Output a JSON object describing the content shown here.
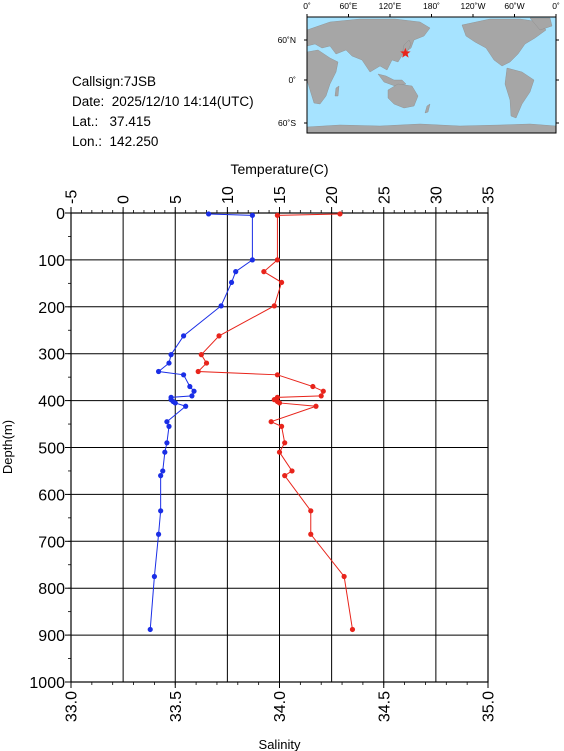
{
  "station": {
    "callsign_label": "Callsign:",
    "callsign": "7JSB",
    "date_label": "Date:",
    "date": "2025/12/10 14:14(UTC)",
    "lat_label": "Lat.:",
    "lat": "37.415",
    "lon_label": "Lon.:",
    "lon": "142.250"
  },
  "map": {
    "top_labels": [
      "0˚",
      "60˚E",
      "120˚E",
      "180˚",
      "120˚W",
      "60˚W",
      "0˚"
    ],
    "side_labels": [
      "60˚N",
      "0˚",
      "60˚S"
    ],
    "ocean_color": "#a6e3ff",
    "land_color": "#a6a6a6",
    "marker_color": "#e8241b",
    "marker_icon": "star-icon"
  },
  "chart_data": [
    {
      "type": "line",
      "xlabel": "Temperature(C)",
      "ylabel": "Depth(m)",
      "x_ticks": [
        "-5",
        "0",
        "5",
        "10",
        "15",
        "20",
        "25",
        "30",
        "35"
      ],
      "xlim": [
        -5,
        35
      ],
      "ylim": [
        1000,
        0
      ],
      "y_ticks": [
        "0",
        "100",
        "200",
        "300",
        "400",
        "500",
        "600",
        "700",
        "800",
        "900",
        "1000"
      ],
      "grid": true,
      "series": [
        {
          "color": "#e8241b",
          "points": [
            [
              20.8,
              2
            ],
            [
              14.8,
              5
            ],
            [
              14.8,
              100
            ],
            [
              13.5,
              125
            ],
            [
              15.2,
              148
            ],
            [
              14.5,
              198
            ],
            [
              9.2,
              262
            ],
            [
              7.5,
              302
            ],
            [
              8.0,
              320
            ],
            [
              7.2,
              338
            ],
            [
              14.8,
              345
            ],
            [
              18.2,
              370
            ],
            [
              19.2,
              380
            ],
            [
              19.0,
              390
            ],
            [
              14.8,
              393
            ],
            [
              14.5,
              398
            ],
            [
              14.8,
              402
            ],
            [
              15.0,
              405
            ],
            [
              18.5,
              412
            ],
            [
              14.2,
              445
            ],
            [
              15.2,
              455
            ],
            [
              15.5,
              490
            ],
            [
              15.0,
              510
            ],
            [
              16.2,
              550
            ],
            [
              15.5,
              560
            ],
            [
              18.0,
              635
            ],
            [
              18.0,
              685
            ],
            [
              21.2,
              775
            ],
            [
              22.0,
              888
            ]
          ]
        }
      ]
    },
    {
      "type": "line",
      "xlabel": "Salinity",
      "x_ticks": [
        "33.0",
        "33.5",
        "34.0",
        "34.5",
        "35.0"
      ],
      "xlim": [
        33.0,
        35.0
      ],
      "ylim": [
        1000,
        0
      ],
      "series": [
        {
          "color": "#1a2ee6",
          "points": [
            [
              33.66,
              2
            ],
            [
              33.87,
              5
            ],
            [
              33.87,
              100
            ],
            [
              33.79,
              125
            ],
            [
              33.77,
              148
            ],
            [
              33.72,
              198
            ],
            [
              33.54,
              262
            ],
            [
              33.48,
              302
            ],
            [
              33.47,
              320
            ],
            [
              33.42,
              338
            ],
            [
              33.54,
              345
            ],
            [
              33.57,
              370
            ],
            [
              33.59,
              380
            ],
            [
              33.58,
              390
            ],
            [
              33.48,
              393
            ],
            [
              33.48,
              398
            ],
            [
              33.49,
              402
            ],
            [
              33.5,
              405
            ],
            [
              33.55,
              412
            ],
            [
              33.46,
              445
            ],
            [
              33.47,
              455
            ],
            [
              33.46,
              490
            ],
            [
              33.45,
              510
            ],
            [
              33.44,
              550
            ],
            [
              33.43,
              560
            ],
            [
              33.43,
              635
            ],
            [
              33.42,
              685
            ],
            [
              33.4,
              775
            ],
            [
              33.38,
              888
            ]
          ]
        }
      ]
    }
  ]
}
